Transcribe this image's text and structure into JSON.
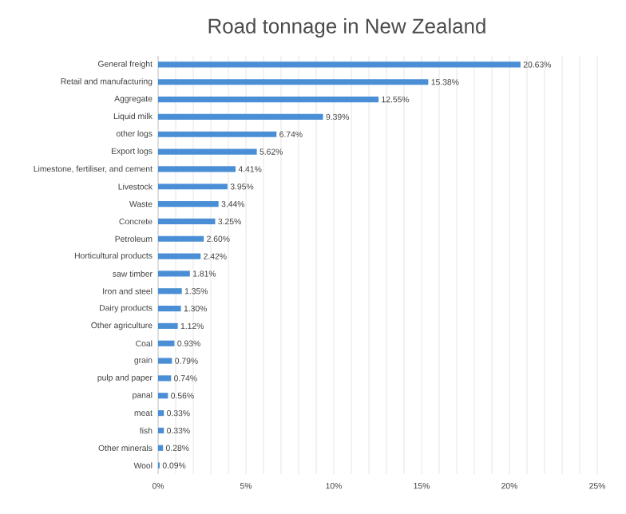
{
  "chart_data": {
    "type": "bar",
    "orientation": "horizontal",
    "title": "Road tonnage in New Zealand",
    "categories": [
      "General freight",
      "Retail and manufacturing",
      "Aggregate",
      "Liquid milk",
      "other logs",
      "Export logs",
      "Limestone, fertiliser, and cement",
      "Livestock",
      "Waste",
      "Concrete",
      "Petroleum",
      "Horticultural products",
      "saw timber",
      "Iron and steel",
      "Dairy products",
      "Other agriculture",
      "Coal",
      "grain",
      "pulp and paper",
      "panal",
      "meat",
      "fish",
      "Other minerals",
      "Wool"
    ],
    "values": [
      20.63,
      15.38,
      12.55,
      9.39,
      6.74,
      5.62,
      4.41,
      3.95,
      3.44,
      3.25,
      2.6,
      2.42,
      1.81,
      1.35,
      1.3,
      1.12,
      0.93,
      0.79,
      0.74,
      0.56,
      0.33,
      0.33,
      0.28,
      0.09
    ],
    "value_labels": [
      "20.63%",
      "15.38%",
      "12.55%",
      "9.39%",
      "6.74%",
      "5.62%",
      "4.41%",
      "3.95%",
      "3.44%",
      "3.25%",
      "2.60%",
      "2.42%",
      "1.81%",
      "1.35%",
      "1.30%",
      "1.12%",
      "0.93%",
      "0.79%",
      "0.74%",
      "0.56%",
      "0.33%",
      "0.33%",
      "0.28%",
      "0.09%"
    ],
    "color": "#4a8fd6",
    "xlim": [
      0,
      25
    ],
    "xticks": [
      {
        "value": 0,
        "label": "0%"
      },
      {
        "value": 1,
        "label": null
      },
      {
        "value": 2,
        "label": null
      },
      {
        "value": 3,
        "label": null
      },
      {
        "value": 4,
        "label": null
      },
      {
        "value": 5,
        "label": "5%"
      },
      {
        "value": 6,
        "label": null
      },
      {
        "value": 7,
        "label": null
      },
      {
        "value": 8,
        "label": null
      },
      {
        "value": 9,
        "label": null
      },
      {
        "value": 10,
        "label": "10%"
      },
      {
        "value": 11,
        "label": null
      },
      {
        "value": 12,
        "label": null
      },
      {
        "value": 13,
        "label": null
      },
      {
        "value": 14,
        "label": null
      },
      {
        "value": 15,
        "label": "15%"
      },
      {
        "value": 16,
        "label": null
      },
      {
        "value": 17,
        "label": null
      },
      {
        "value": 18,
        "label": null
      },
      {
        "value": 19,
        "label": null
      },
      {
        "value": 20,
        "label": "20%"
      },
      {
        "value": 21,
        "label": null
      },
      {
        "value": 22,
        "label": null
      },
      {
        "value": 23,
        "label": null
      },
      {
        "value": 24,
        "label": null
      },
      {
        "value": 25,
        "label": "25%"
      }
    ],
    "grid": "x"
  }
}
